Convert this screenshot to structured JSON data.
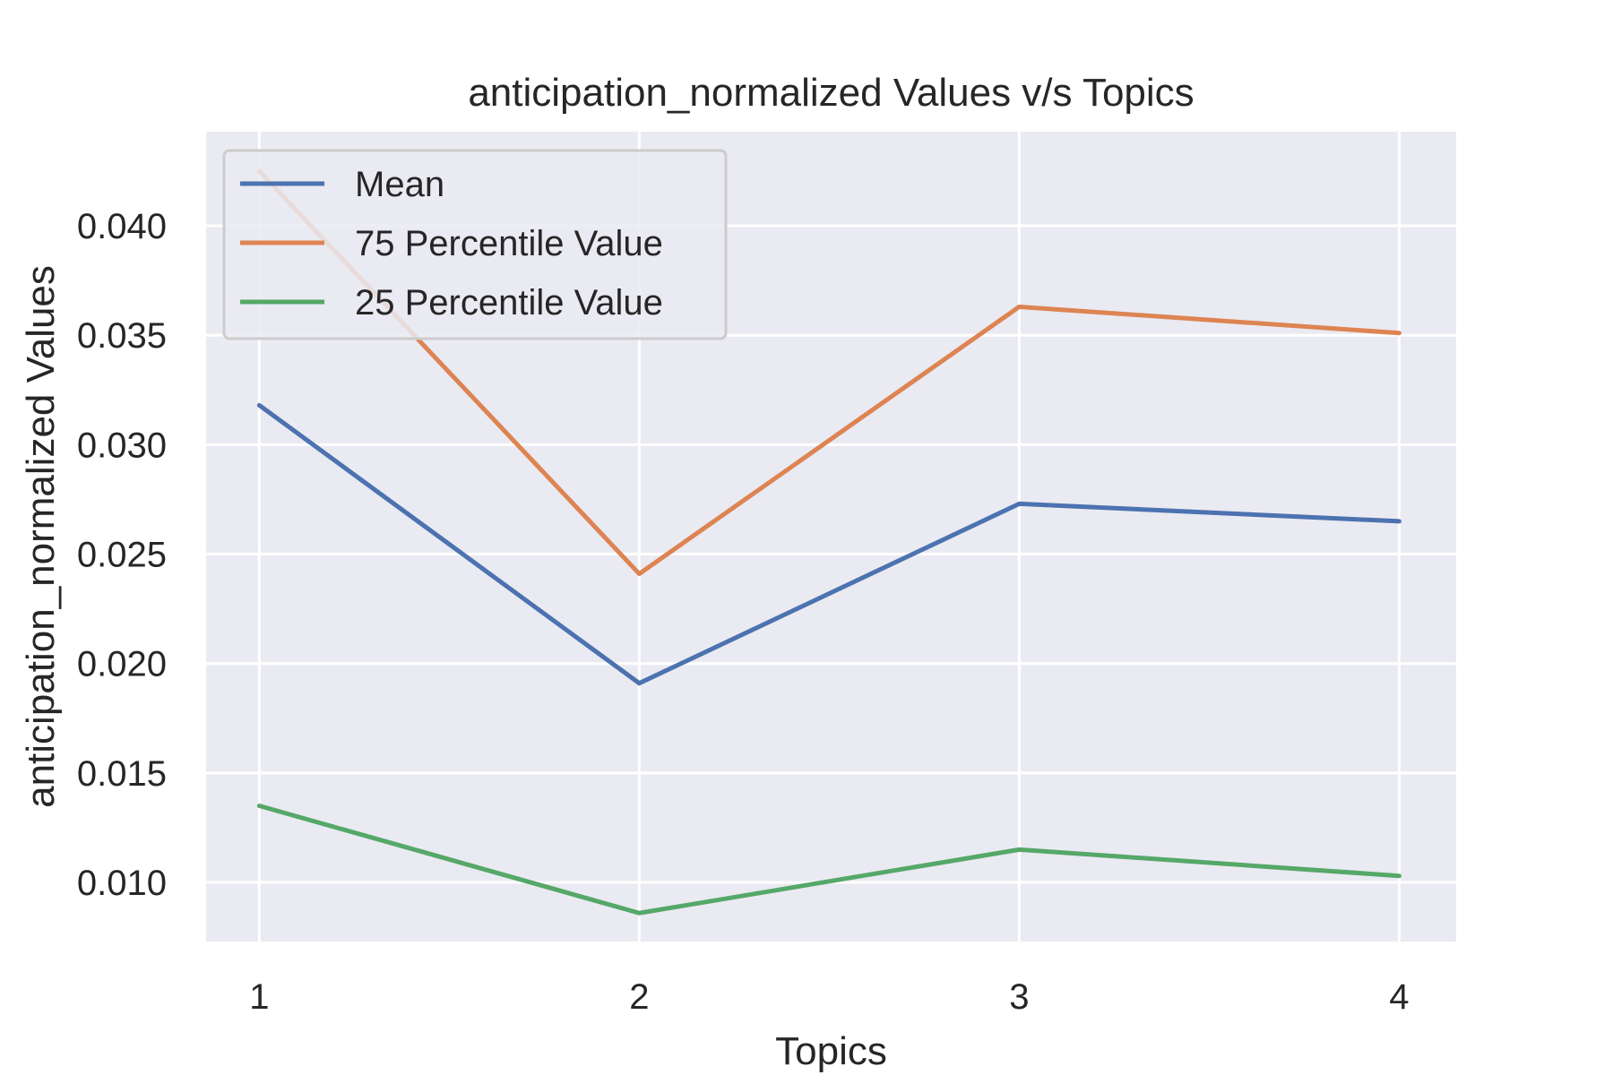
{
  "chart_data": {
    "type": "line",
    "title": "anticipation_normalized Values v/s Topics",
    "xlabel": "Topics",
    "ylabel": "anticipation_normalized Values",
    "x": [
      1,
      2,
      3,
      4
    ],
    "x_tick_labels": [
      "1",
      "2",
      "3",
      "4"
    ],
    "xlim": [
      0.86,
      4.15
    ],
    "ylim": [
      0.0073,
      0.0443
    ],
    "y_ticks": [
      0.01,
      0.015,
      0.02,
      0.025,
      0.03,
      0.035,
      0.04
    ],
    "y_tick_labels": [
      "0.010",
      "0.015",
      "0.020",
      "0.025",
      "0.030",
      "0.035",
      "0.040"
    ],
    "grid": true,
    "legend_position": "top-left",
    "series": [
      {
        "name": "Mean",
        "color": "#4c72b0",
        "values": [
          0.0318,
          0.0191,
          0.0273,
          0.0265
        ]
      },
      {
        "name": "75 Percentile Value",
        "color": "#dd8452",
        "values": [
          0.0425,
          0.0241,
          0.0363,
          0.0351
        ]
      },
      {
        "name": "25 Percentile Value",
        "color": "#55a868",
        "values": [
          0.0135,
          0.0086,
          0.0115,
          0.0103
        ]
      }
    ]
  }
}
